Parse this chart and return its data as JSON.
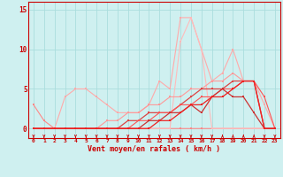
{
  "xlabel": "Vent moyen/en rafales ( km/h )",
  "xlim": [
    -0.5,
    23.5
  ],
  "ylim": [
    -1.2,
    16
  ],
  "yticks": [
    0,
    5,
    10,
    15
  ],
  "xticks": [
    0,
    1,
    2,
    3,
    4,
    5,
    6,
    7,
    8,
    9,
    10,
    11,
    12,
    13,
    14,
    15,
    16,
    17,
    18,
    19,
    20,
    21,
    22,
    23
  ],
  "bg_color": "#cff0f0",
  "grid_color": "#aadddd",
  "series": [
    {
      "x": [
        0,
        1,
        2,
        3,
        4,
        5,
        6,
        7,
        8,
        9,
        10,
        11,
        12,
        13,
        14,
        15,
        16,
        17,
        18,
        19,
        20,
        21,
        22,
        23
      ],
      "y": [
        3,
        1,
        0,
        0,
        0,
        0,
        0,
        0,
        0,
        0,
        0,
        0,
        0,
        0,
        0,
        0,
        0,
        0,
        0,
        0,
        0,
        0,
        0,
        0
      ],
      "color": "#ff8888",
      "linewidth": 0.8,
      "markersize": 2.0
    },
    {
      "x": [
        0,
        1,
        2,
        3,
        4,
        5,
        6,
        7,
        8,
        9,
        10,
        11,
        12,
        13,
        14,
        15,
        16,
        17,
        18,
        19,
        20,
        21,
        22,
        23
      ],
      "y": [
        0,
        0,
        0,
        4,
        5,
        5,
        4,
        3,
        2,
        2,
        2,
        3,
        6,
        5,
        14,
        14,
        10,
        6,
        7,
        10,
        6,
        6,
        3,
        0
      ],
      "color": "#ffaaaa",
      "linewidth": 0.8,
      "markersize": 2.0
    },
    {
      "x": [
        0,
        1,
        2,
        3,
        4,
        5,
        6,
        7,
        8,
        9,
        10,
        11,
        12,
        13,
        14,
        15,
        16,
        17,
        18,
        19,
        20,
        21,
        22,
        23
      ],
      "y": [
        0,
        0,
        0,
        0,
        0,
        0,
        0,
        0,
        0,
        0,
        0,
        0,
        0,
        0,
        11,
        14,
        10,
        0,
        0,
        0,
        0,
        0,
        0,
        0
      ],
      "color": "#ffbbbb",
      "linewidth": 0.8,
      "markersize": 2.0
    },
    {
      "x": [
        0,
        1,
        2,
        3,
        4,
        5,
        6,
        7,
        8,
        9,
        10,
        11,
        12,
        13,
        14,
        15,
        16,
        17,
        18,
        19,
        20,
        21,
        22,
        23
      ],
      "y": [
        0,
        0,
        0,
        0,
        0,
        0,
        0,
        1,
        1,
        2,
        2,
        3,
        3,
        4,
        4,
        5,
        5,
        6,
        6,
        7,
        6,
        6,
        0,
        0
      ],
      "color": "#ff9999",
      "linewidth": 0.8,
      "markersize": 2.0
    },
    {
      "x": [
        0,
        1,
        2,
        3,
        4,
        5,
        6,
        7,
        8,
        9,
        10,
        11,
        12,
        13,
        14,
        15,
        16,
        17,
        18,
        19,
        20,
        21,
        22,
        23
      ],
      "y": [
        0,
        0,
        0,
        0,
        0,
        0,
        0,
        0,
        0,
        1,
        1,
        2,
        2,
        2,
        3,
        4,
        5,
        5,
        5,
        6,
        6,
        6,
        0,
        0
      ],
      "color": "#dd4444",
      "linewidth": 0.9,
      "markersize": 2.0
    },
    {
      "x": [
        0,
        1,
        2,
        3,
        4,
        5,
        6,
        7,
        8,
        9,
        10,
        11,
        12,
        13,
        14,
        15,
        16,
        17,
        18,
        19,
        20,
        21,
        22,
        23
      ],
      "y": [
        0,
        0,
        0,
        0,
        0,
        0,
        0,
        0,
        0,
        0,
        1,
        1,
        2,
        2,
        3,
        3,
        4,
        4,
        5,
        5,
        6,
        6,
        4,
        0
      ],
      "color": "#ff5555",
      "linewidth": 0.8,
      "markersize": 2.0
    },
    {
      "x": [
        0,
        1,
        2,
        3,
        4,
        5,
        6,
        7,
        8,
        9,
        10,
        11,
        12,
        13,
        14,
        15,
        16,
        17,
        18,
        19,
        20,
        21,
        22,
        23
      ],
      "y": [
        0,
        0,
        0,
        0,
        0,
        0,
        0,
        0,
        0,
        0,
        0,
        1,
        1,
        2,
        2,
        3,
        2,
        4,
        5,
        4,
        4,
        2,
        0,
        0
      ],
      "color": "#cc3333",
      "linewidth": 0.9,
      "markersize": 2.0
    },
    {
      "x": [
        0,
        1,
        2,
        3,
        4,
        5,
        6,
        7,
        8,
        9,
        10,
        11,
        12,
        13,
        14,
        15,
        16,
        17,
        18,
        19,
        20,
        21,
        22,
        23
      ],
      "y": [
        0,
        0,
        0,
        0,
        0,
        0,
        0,
        0,
        0,
        0,
        0,
        0,
        1,
        1,
        2,
        3,
        3,
        4,
        4,
        5,
        6,
        6,
        0,
        0
      ],
      "color": "#ee2222",
      "linewidth": 0.9,
      "markersize": 2.0
    }
  ],
  "arrows": {
    "x": [
      0,
      1,
      2,
      3,
      4,
      5,
      6,
      7,
      8,
      9,
      10,
      11,
      12,
      13,
      14,
      15,
      16,
      17,
      18,
      19,
      20,
      21,
      22,
      23
    ],
    "dirs": [
      "d",
      "d",
      "d",
      "d",
      "d",
      "d",
      "d",
      "d",
      "d",
      "d",
      "d",
      "d",
      "d",
      "d",
      "d",
      "d",
      "d",
      "d",
      "u",
      "u",
      "u",
      "u",
      "d",
      "d"
    ]
  },
  "axis_color": "#cc0000",
  "tick_color": "#cc0000",
  "label_color": "#cc0000"
}
